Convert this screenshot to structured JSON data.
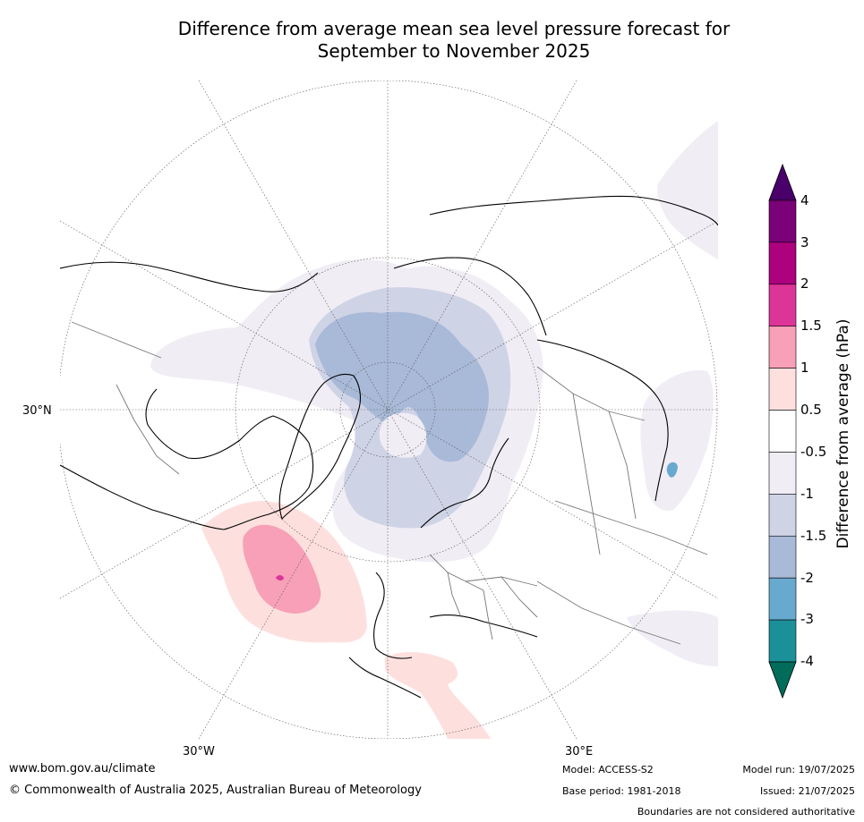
{
  "title": {
    "line1": "Difference from average mean sea level pressure forecast for",
    "line2": "September to November 2025"
  },
  "map": {
    "projection": "north polar stereographic",
    "lat_labels": [
      "30°N"
    ],
    "lon_labels": [
      "30°W",
      "30°E"
    ],
    "anomaly_regions": [
      {
        "region": "Arctic / northern Eurasia",
        "category": "-2 to -1.5",
        "color": "#a9bad8"
      },
      {
        "region": "Arctic surroundings",
        "category": "-1.5 to -1",
        "color": "#cfd3e6"
      },
      {
        "region": "broad high latitudes",
        "category": "-1 to -0.5",
        "color": "#f1edf5"
      },
      {
        "region": "North Atlantic",
        "category": "1 to 1.5",
        "color": "#f7a0b8"
      },
      {
        "region": "North Atlantic / Mediterranean",
        "category": "0.5 to 1",
        "color": "#fde0de"
      },
      {
        "region": "North Atlantic core",
        "category": "1.5 to 2",
        "color": "#dd3497"
      },
      {
        "region": "Central Asia",
        "category": "-3 to -2",
        "color": "#67a9cf"
      }
    ]
  },
  "colorbar": {
    "label": "Difference from average (hPa)",
    "ticks": [
      "4",
      "3",
      "2",
      "1.5",
      "1",
      "0.5",
      "-0.5",
      "-1",
      "-1.5",
      "-2",
      "-3",
      "-4"
    ],
    "colors": [
      "#7a0177",
      "#ae017e",
      "#dd3497",
      "#f7a0b8",
      "#fde0de",
      "#ffffff",
      "#f1edf5",
      "#cfd3e6",
      "#a9bad8",
      "#67a9cf",
      "#1c9099"
    ],
    "over_color": "#49006a",
    "under_color": "#016c59"
  },
  "footer": {
    "website": "www.bom.gov.au/climate",
    "copyright": "© Commonwealth of Australia 2025, Australian Bureau of Meteorology",
    "model": "Model: ACCESS-S2",
    "base_period": "Base period: 1981-2018",
    "model_run": "Model run: 19/07/2025",
    "issued": "Issued: 21/07/2025",
    "disclaimer": "Boundaries are not considered authoritative"
  }
}
